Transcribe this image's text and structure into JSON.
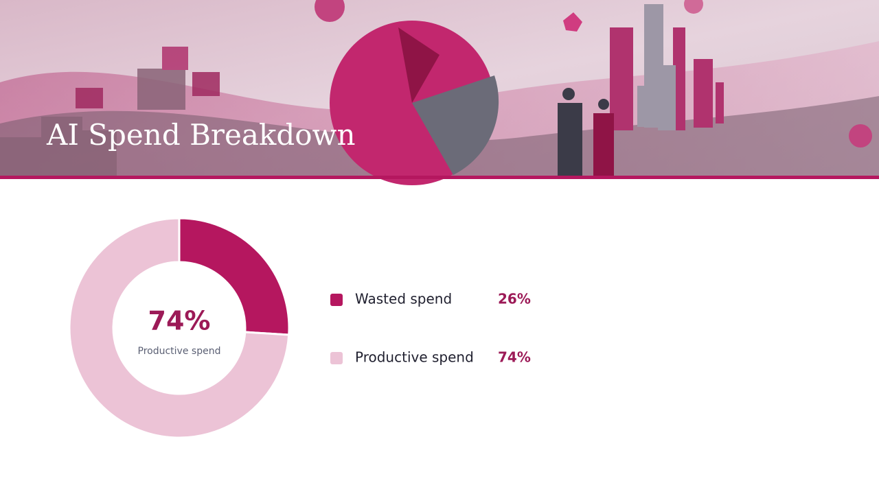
{
  "chart_data": {
    "type": "donut",
    "title": "AI Spend Breakdown",
    "categories": [
      "Wasted spend",
      "Productive spend"
    ],
    "values": [
      26,
      74
    ],
    "value_labels": [
      "26%",
      "74%"
    ],
    "colors": [
      "#b5175f",
      "#ecc3d6"
    ]
  }
}
